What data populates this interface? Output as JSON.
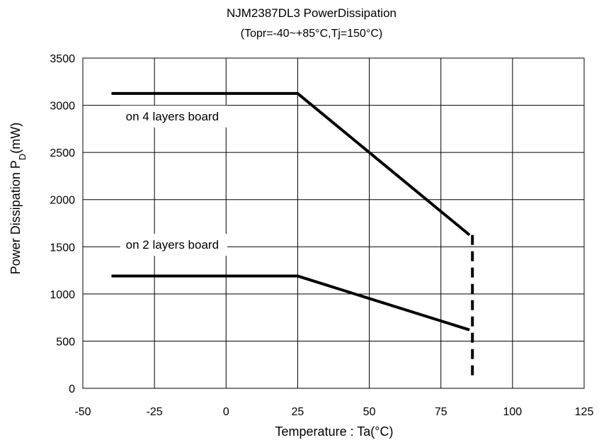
{
  "chart_data": {
    "type": "line",
    "title": "NJM2387DL3   PowerDissipation",
    "subtitle": "(Topr=-40~+85°C,Tj=150°C)",
    "xlabel": "Temperature : Ta(°C)",
    "ylabel_main": "Power Dissipation P",
    "ylabel_sub": "D",
    "ylabel_unit": "(mW)",
    "xlim": [
      -50,
      125
    ],
    "ylim": [
      0,
      3500
    ],
    "xticks": [
      -50,
      -25,
      0,
      25,
      50,
      75,
      100,
      125
    ],
    "yticks": [
      0,
      500,
      1000,
      1500,
      2000,
      2500,
      3000,
      3500
    ],
    "grid": true,
    "series": [
      {
        "name": "on 4 layers board",
        "x": [
          -40,
          25,
          85
        ],
        "y": [
          3125,
          3125,
          1625
        ]
      },
      {
        "name": "on 2 layers board",
        "x": [
          -40,
          25,
          85
        ],
        "y": [
          1190,
          1190,
          619
        ]
      }
    ],
    "dashed_line": {
      "x": [
        86,
        86
      ],
      "y": [
        1625,
        80
      ]
    },
    "annotations": [
      {
        "text": "on 4 layers board",
        "x": -35,
        "y": 2840
      },
      {
        "text": "on 2 layers board",
        "x": -35,
        "y": 1480
      }
    ]
  }
}
